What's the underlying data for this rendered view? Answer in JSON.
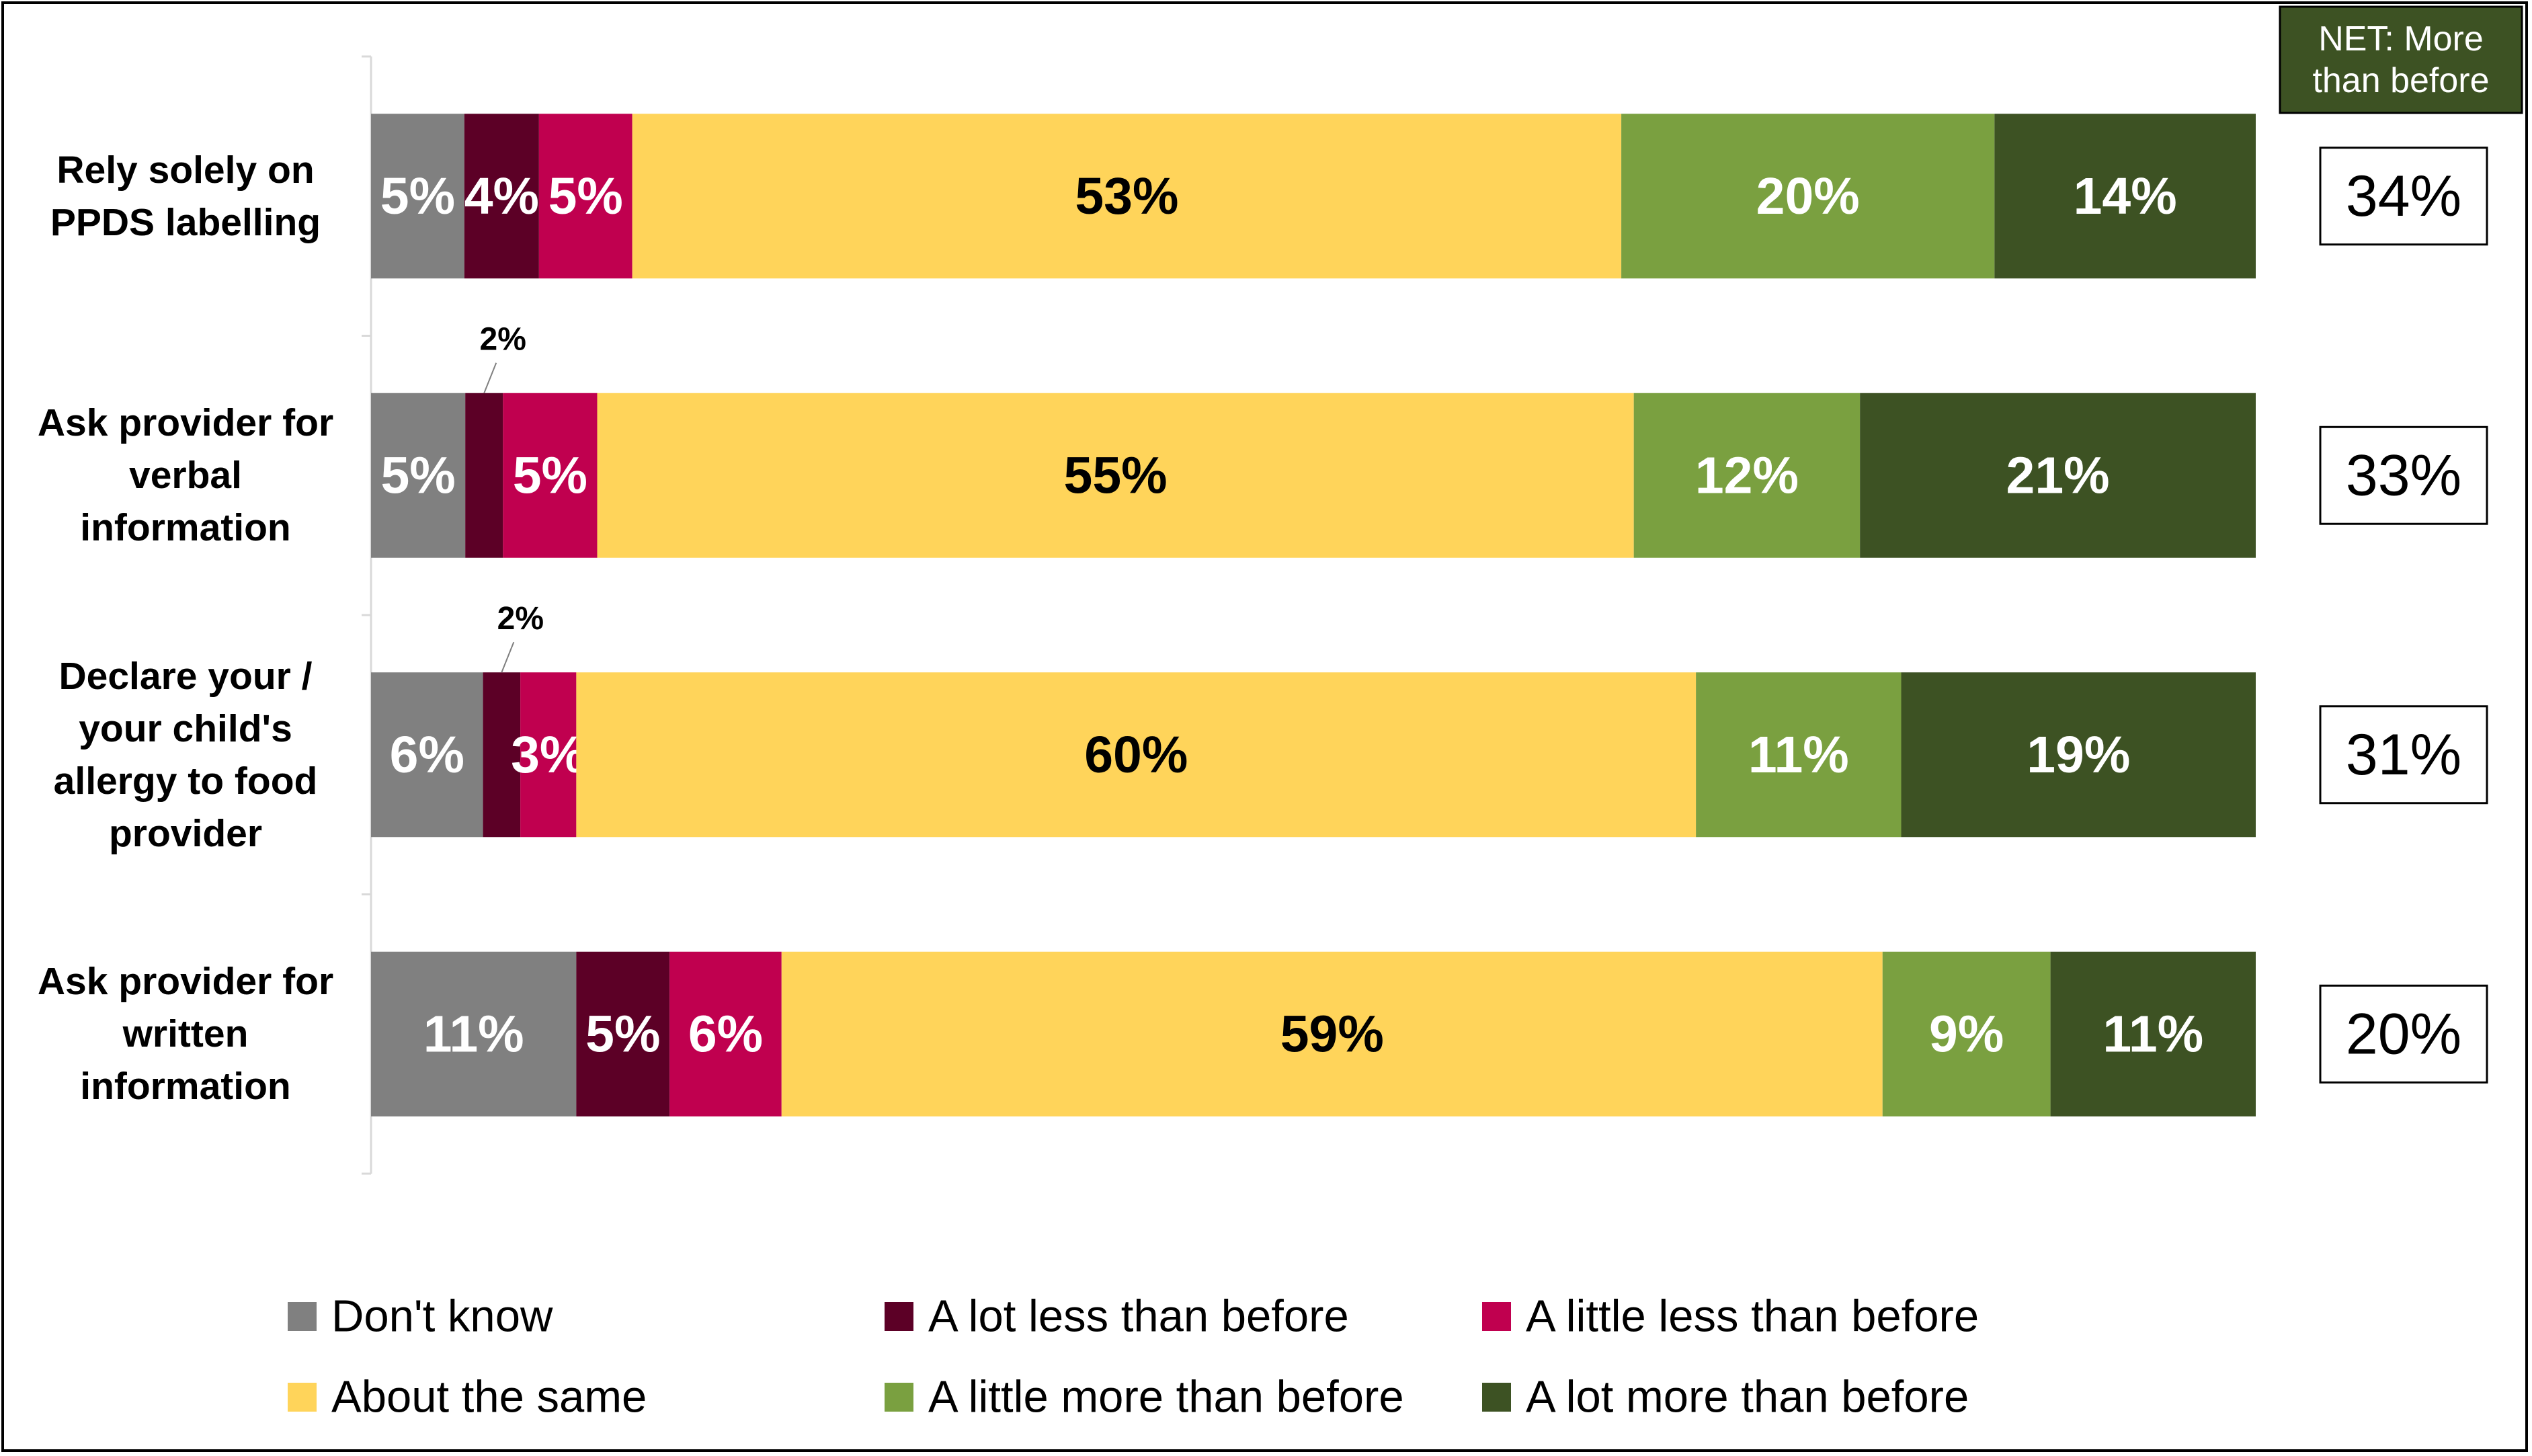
{
  "chart_data": {
    "type": "stacked-bar-100",
    "categories": [
      "Rely solely on PPDS labelling",
      "Ask provider for verbal information",
      "Declare your / your child's allergy to food provider",
      "Ask provider for written information"
    ],
    "series": [
      {
        "name": "Don't know",
        "color": "#808080",
        "values": [
          5,
          5,
          6,
          11
        ],
        "value_labels": [
          "5%",
          "5%",
          "6%",
          "11%"
        ]
      },
      {
        "name": "A lot less than before",
        "color": "#5c0026",
        "values": [
          4,
          2,
          2,
          5
        ],
        "value_labels": [
          "4%",
          "2%",
          "2%",
          "5%"
        ]
      },
      {
        "name": "A little less than before",
        "color": "#c0004f",
        "values": [
          5,
          5,
          3,
          6
        ],
        "value_labels": [
          "5%",
          "5%",
          "3%",
          "6%"
        ]
      },
      {
        "name": "About the same",
        "color": "#ffd45a",
        "values": [
          53,
          55,
          60,
          59
        ],
        "value_labels": [
          "53%",
          "55%",
          "60%",
          "59%"
        ]
      },
      {
        "name": "A little more than before",
        "color": "#7aa040",
        "values": [
          20,
          12,
          11,
          9
        ],
        "value_labels": [
          "20%",
          "12%",
          "11%",
          "9%"
        ]
      },
      {
        "name": "A lot more than before",
        "color": "#3d5223",
        "values": [
          14,
          21,
          19,
          11
        ],
        "value_labels": [
          "14%",
          "21%",
          "19%",
          "11%"
        ]
      }
    ],
    "net": {
      "title": "NET: More than before",
      "color": "#3d5223",
      "values": [
        34,
        33,
        31,
        20
      ],
      "value_labels": [
        "34%",
        "33%",
        "31%",
        "20%"
      ]
    }
  }
}
